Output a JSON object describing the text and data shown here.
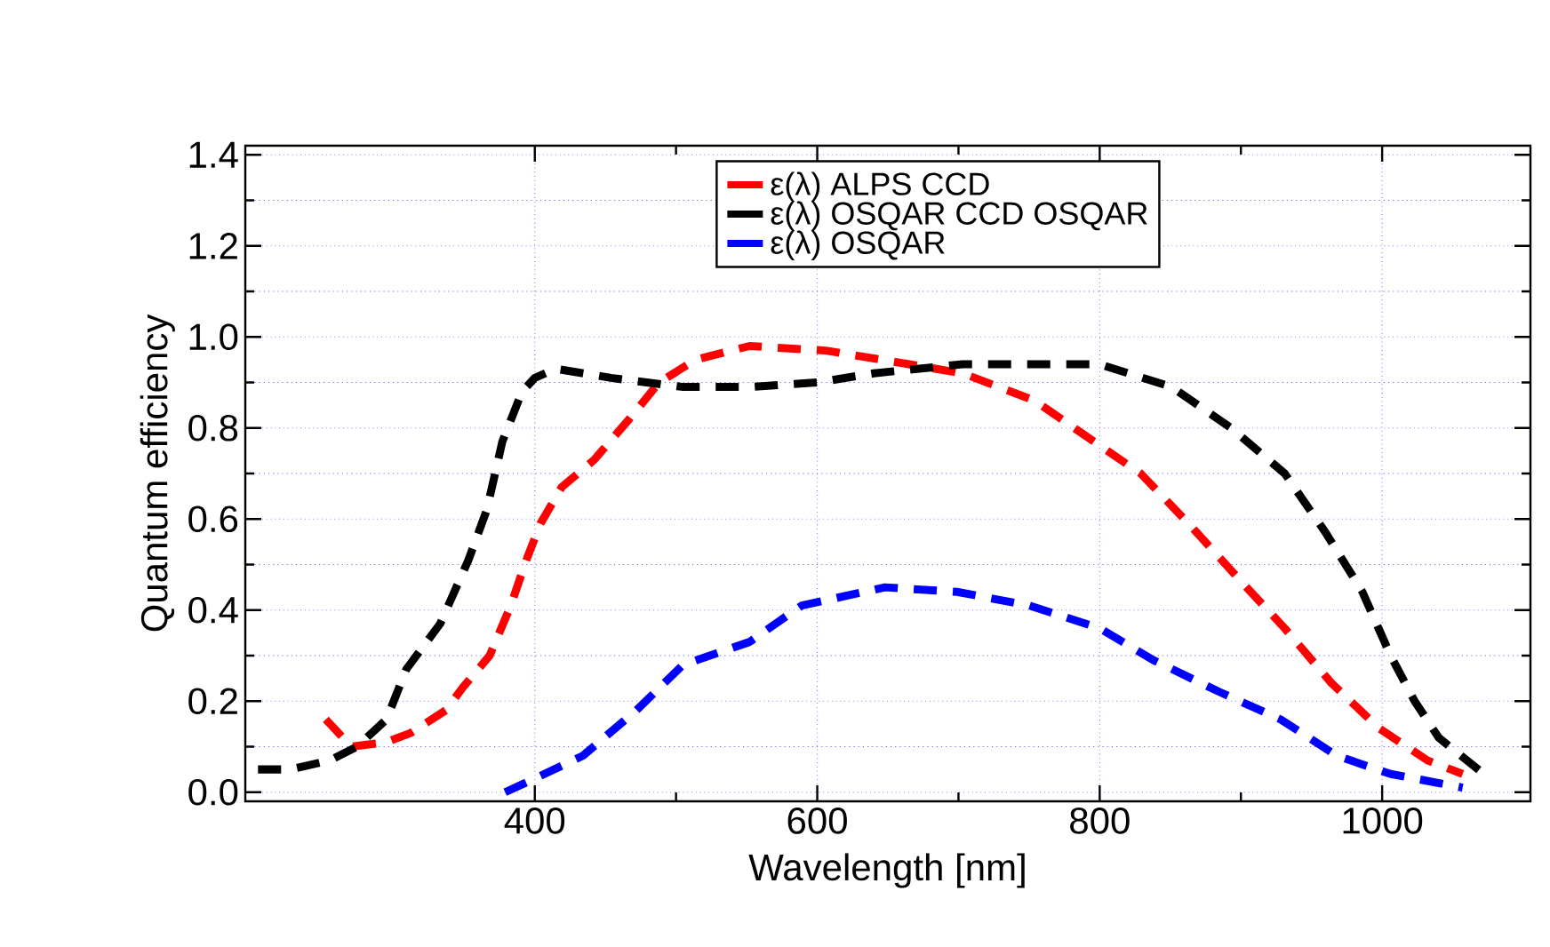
{
  "chart_data": {
    "type": "line",
    "xlabel": "Wavelength [nm]",
    "ylabel": "Quantum efficiency",
    "xlim": [
      195,
      1105
    ],
    "ylim": [
      -0.02,
      1.42
    ],
    "xticks": [
      400,
      600,
      800,
      1000
    ],
    "yticks": [
      {
        "value": 0,
        "label": "0.0"
      },
      0.2,
      0.4,
      0.6,
      0.8,
      {
        "value": 1,
        "label": "1.0"
      },
      1.2,
      1.4
    ],
    "grid": true,
    "legend": "top",
    "line_style": "dashed",
    "marker": "none",
    "series": [
      {
        "name": "ε(λ) ALPS CCD",
        "color": "#ff0000",
        "x": [
          252,
          270,
          295,
          312,
          337,
          349,
          368,
          383,
          394,
          404,
          419,
          442,
          467,
          488,
          514,
          552,
          606,
          665,
          703,
          754,
          796,
          829,
          863,
          901,
          931,
          964,
          998,
          1032,
          1057
        ],
        "values": [
          0.16,
          0.1,
          0.11,
          0.13,
          0.18,
          0.23,
          0.3,
          0.41,
          0.51,
          0.59,
          0.67,
          0.73,
          0.82,
          0.9,
          0.95,
          0.98,
          0.97,
          0.94,
          0.92,
          0.86,
          0.77,
          0.7,
          0.59,
          0.46,
          0.36,
          0.24,
          0.14,
          0.07,
          0.04
        ]
      },
      {
        "name": "ε(λ) OSQAR CCD OSQAR",
        "color": "#000000",
        "x": [
          204,
          227,
          255,
          274,
          295,
          309,
          333,
          353,
          366,
          377,
          391,
          400,
          415,
          454,
          505,
          552,
          600,
          640,
          703,
          754,
          800,
          851,
          893,
          931,
          960,
          986,
          1006,
          1023,
          1040,
          1072
        ],
        "values": [
          0.05,
          0.05,
          0.07,
          0.1,
          0.16,
          0.27,
          0.37,
          0.51,
          0.62,
          0.77,
          0.88,
          0.91,
          0.93,
          0.91,
          0.89,
          0.89,
          0.9,
          0.92,
          0.94,
          0.94,
          0.94,
          0.89,
          0.8,
          0.7,
          0.57,
          0.44,
          0.3,
          0.2,
          0.12,
          0.04
        ]
      },
      {
        "name": "ε(λ) OSQAR",
        "color": "#0000ff",
        "x": [
          379,
          400,
          434,
          472,
          505,
          552,
          589,
          648,
          699,
          750,
          800,
          838,
          885,
          928,
          968,
          1006,
          1057
        ],
        "values": [
          0.0,
          0.03,
          0.08,
          0.18,
          0.28,
          0.33,
          0.41,
          0.45,
          0.44,
          0.41,
          0.36,
          0.29,
          0.22,
          0.16,
          0.08,
          0.04,
          0.01
        ]
      }
    ]
  }
}
